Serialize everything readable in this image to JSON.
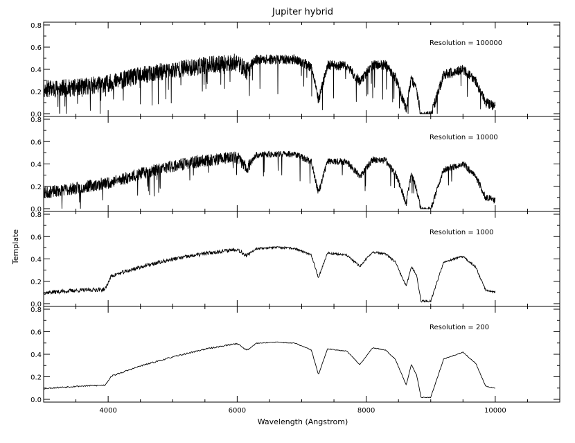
{
  "chart_data": {
    "type": "line",
    "title": "Jupiter hybrid",
    "xlabel": "Wavelength (Angstrom)",
    "ylabel": "Template",
    "xlim": [
      3000,
      11000
    ],
    "ylim": [
      0.0,
      0.8
    ],
    "xticks": [
      "4000",
      "6000",
      "8000",
      "10000"
    ],
    "yticks": [
      "0.0",
      "0.2",
      "0.4",
      "0.6",
      "0.8"
    ],
    "grid": false,
    "line_color": "#000000",
    "panels": [
      {
        "annotation": "Resolution = 100000",
        "noise": 0.16,
        "seed": 11,
        "samples": 2400,
        "drops": {
          "count": 60,
          "depth": 0.3
        },
        "envelope_x": [
          3000,
          3500,
          4000,
          4500,
          5000,
          5500,
          6000,
          6150,
          6300,
          6600,
          6900,
          7150,
          7260,
          7400,
          7700,
          7900,
          8100,
          8300,
          8450,
          8620,
          8700,
          8780,
          8850,
          9000,
          9200,
          9500,
          9700,
          9850,
          10000
        ],
        "envelope_y": [
          0.28,
          0.29,
          0.33,
          0.4,
          0.45,
          0.49,
          0.52,
          0.44,
          0.52,
          0.52,
          0.52,
          0.45,
          0.15,
          0.47,
          0.46,
          0.32,
          0.47,
          0.47,
          0.36,
          0.07,
          0.35,
          0.25,
          0.01,
          0.01,
          0.38,
          0.43,
          0.32,
          0.13,
          0.1
        ]
      },
      {
        "annotation": "Resolution = 10000",
        "noise": 0.11,
        "seed": 23,
        "samples": 2000,
        "drops": {
          "count": 35,
          "depth": 0.22
        },
        "envelope_x": [
          3000,
          3500,
          4000,
          4500,
          5000,
          5500,
          6000,
          6150,
          6300,
          6600,
          6900,
          7150,
          7260,
          7400,
          7700,
          7900,
          8100,
          8300,
          8450,
          8620,
          8700,
          8780,
          8850,
          9000,
          9200,
          9500,
          9700,
          9850,
          10000
        ],
        "envelope_y": [
          0.18,
          0.22,
          0.27,
          0.35,
          0.42,
          0.47,
          0.5,
          0.4,
          0.5,
          0.51,
          0.51,
          0.44,
          0.16,
          0.45,
          0.44,
          0.31,
          0.46,
          0.45,
          0.34,
          0.07,
          0.33,
          0.2,
          0.01,
          0.01,
          0.37,
          0.42,
          0.31,
          0.12,
          0.1
        ]
      },
      {
        "annotation": "Resolution = 1000",
        "noise": 0.035,
        "seed": 37,
        "samples": 1200,
        "drops": {
          "count": 0,
          "depth": 0.0
        },
        "envelope_x": [
          3000,
          3500,
          3950,
          4050,
          4500,
          5000,
          5500,
          6000,
          6150,
          6300,
          6600,
          6900,
          7150,
          7260,
          7400,
          7700,
          7900,
          8100,
          8300,
          8450,
          8620,
          8700,
          8780,
          8850,
          9000,
          9200,
          9500,
          9700,
          9850,
          10000
        ],
        "envelope_y": [
          0.11,
          0.13,
          0.14,
          0.26,
          0.34,
          0.41,
          0.46,
          0.5,
          0.44,
          0.5,
          0.51,
          0.5,
          0.44,
          0.24,
          0.46,
          0.44,
          0.34,
          0.47,
          0.45,
          0.38,
          0.16,
          0.34,
          0.26,
          0.03,
          0.03,
          0.38,
          0.43,
          0.33,
          0.13,
          0.11
        ]
      },
      {
        "annotation": "Resolution = 200",
        "noise": 0.012,
        "seed": 53,
        "samples": 700,
        "drops": {
          "count": 0,
          "depth": 0.0
        },
        "envelope_x": [
          3000,
          3500,
          3950,
          4050,
          4500,
          5000,
          5500,
          6000,
          6150,
          6300,
          6600,
          6900,
          7150,
          7260,
          7400,
          7700,
          7900,
          8100,
          8300,
          8450,
          8620,
          8700,
          8780,
          8850,
          9000,
          9200,
          9500,
          9700,
          9850,
          10000
        ],
        "envelope_y": [
          0.1,
          0.12,
          0.13,
          0.21,
          0.3,
          0.38,
          0.45,
          0.5,
          0.44,
          0.5,
          0.51,
          0.5,
          0.44,
          0.22,
          0.45,
          0.43,
          0.31,
          0.46,
          0.44,
          0.36,
          0.13,
          0.31,
          0.22,
          0.02,
          0.02,
          0.36,
          0.42,
          0.32,
          0.12,
          0.1
        ]
      }
    ]
  }
}
